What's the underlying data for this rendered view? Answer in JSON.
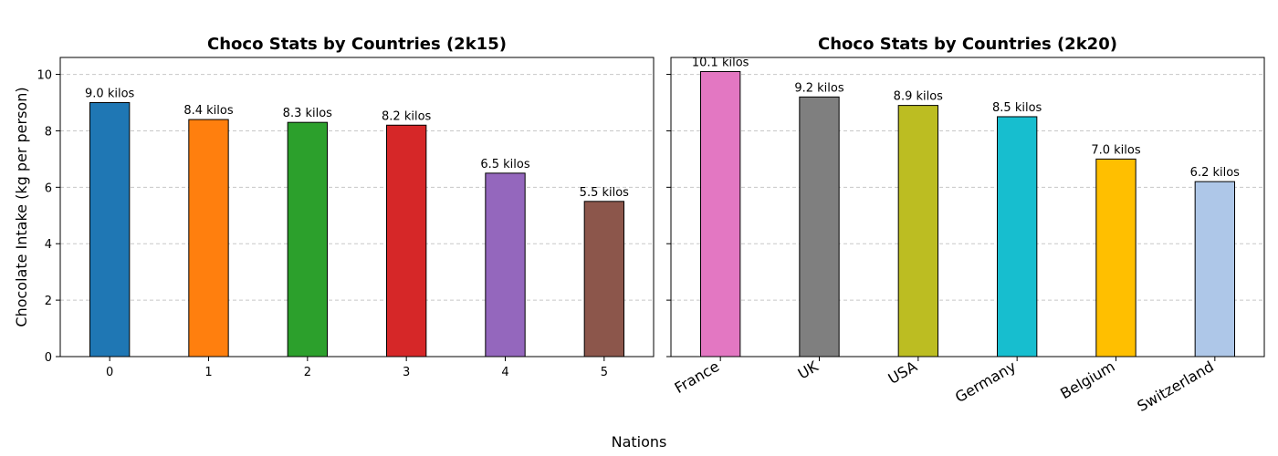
{
  "figure": {
    "xlabel": "Nations"
  },
  "chart_data": [
    {
      "type": "bar",
      "title": "Choco Stats by Countries (2k15)",
      "categories": [
        "0",
        "1",
        "2",
        "3",
        "4",
        "5"
      ],
      "values": [
        9.0,
        8.4,
        8.3,
        8.2,
        6.5,
        5.5
      ],
      "data_labels": [
        "9.0 kilos",
        "8.4 kilos",
        "8.3 kilos",
        "8.2 kilos",
        "6.5 kilos",
        "5.5 kilos"
      ],
      "colors": [
        "#1f77b4",
        "#ff7f0e",
        "#2ca02c",
        "#d62728",
        "#9467bd",
        "#8c564b"
      ],
      "ylabel": "Chocolate Intake (kg per person)",
      "ylim": [
        0,
        10.6
      ],
      "yticks": [
        0,
        2,
        4,
        6,
        8,
        10
      ],
      "grid": "y-dashed",
      "rotated_xticks": false
    },
    {
      "type": "bar",
      "title": "Choco Stats by Countries (2k20)",
      "categories": [
        "France",
        "UK",
        "USA",
        "Germany",
        "Belgium",
        "Switzerland"
      ],
      "values": [
        10.1,
        9.2,
        8.9,
        8.5,
        7.0,
        6.2
      ],
      "data_labels": [
        "10.1 kilos",
        "9.2 kilos",
        "8.9 kilos",
        "8.5 kilos",
        "7.0 kilos",
        "6.2 kilos"
      ],
      "colors": [
        "#e377c2",
        "#7f7f7f",
        "#bcbd22",
        "#17becf",
        "#ffbf00",
        "#aec7e8"
      ],
      "ylabel": "",
      "ylim": [
        0,
        10.6
      ],
      "yticks": [
        0,
        2,
        4,
        6,
        8,
        10
      ],
      "grid": "y-dashed",
      "rotated_xticks": true
    }
  ]
}
